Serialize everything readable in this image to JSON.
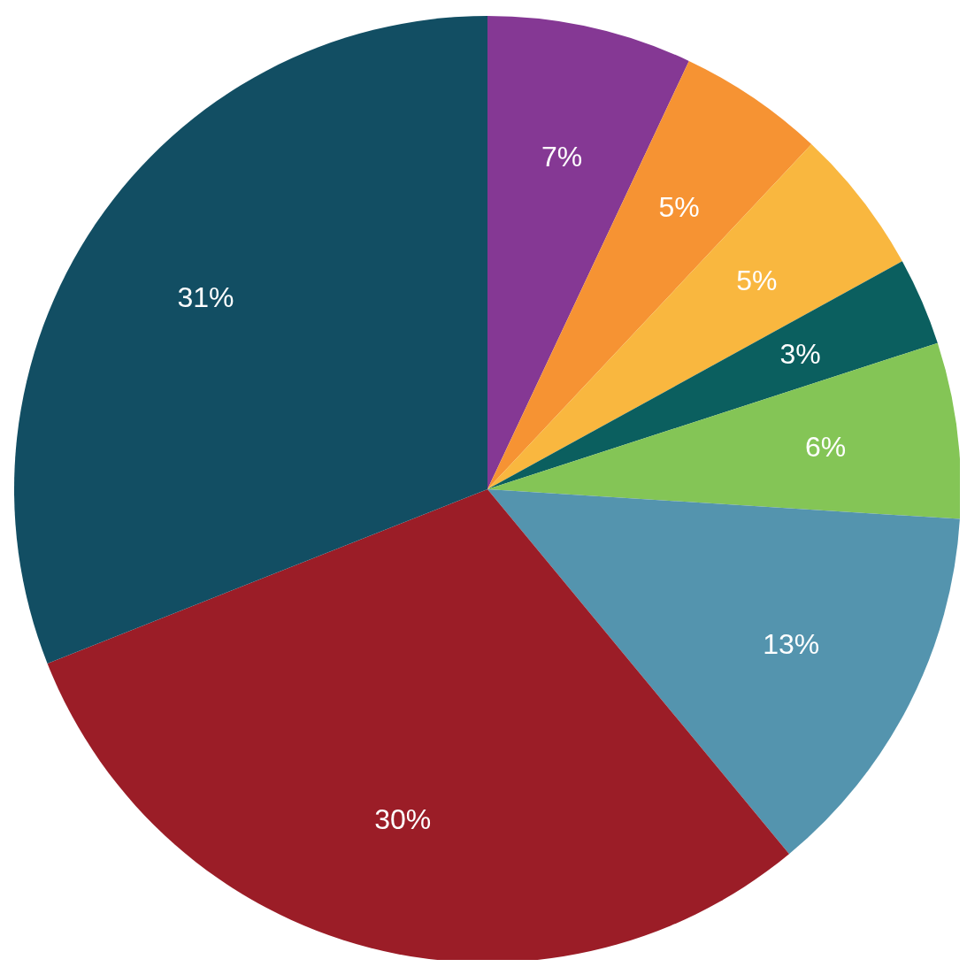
{
  "chart_data": {
    "type": "pie",
    "categories": [
      null,
      null,
      null,
      null,
      null,
      null,
      null,
      null
    ],
    "values": [
      7,
      5,
      5,
      3,
      6,
      13,
      30,
      31
    ],
    "colors": [
      "#853894",
      "#f69333",
      "#f9b73f",
      "#0b5f5f",
      "#84c556",
      "#5494ae",
      "#9b1d27",
      "#124e63"
    ],
    "value_labels": [
      "7%",
      "5%",
      "5%",
      "3%",
      "6%",
      "13%",
      "30%",
      "31%"
    ]
  }
}
